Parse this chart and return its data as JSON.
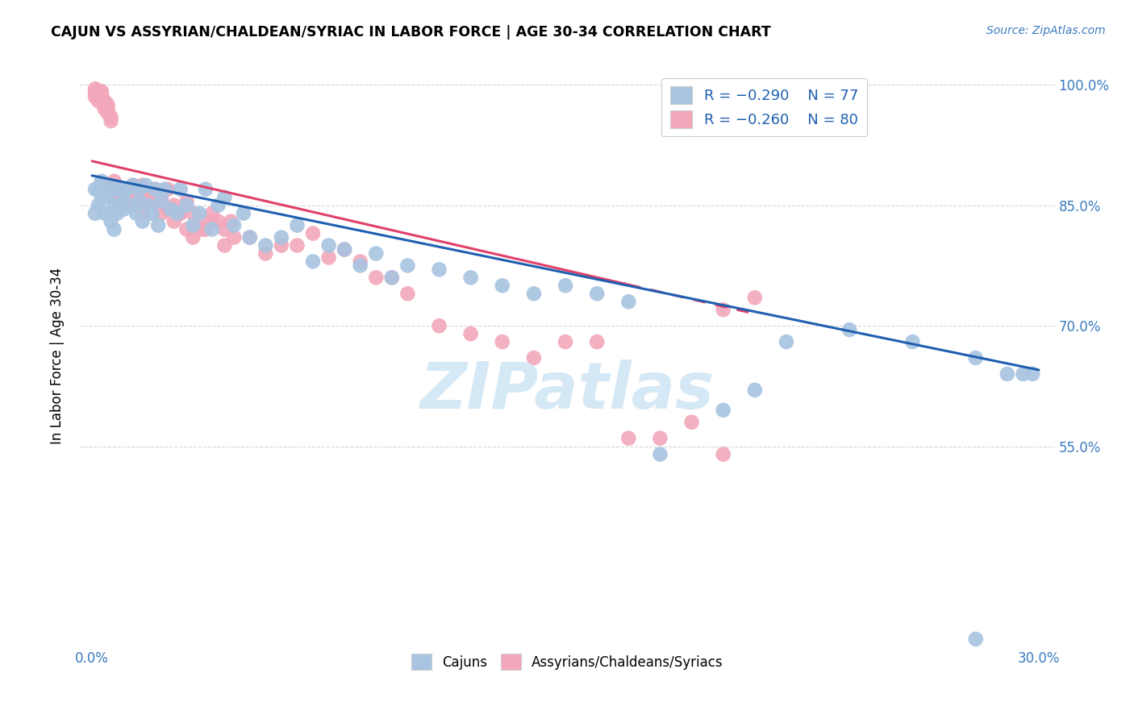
{
  "title": "CAJUN VS ASSYRIAN/CHALDEAN/SYRIAC IN LABOR FORCE | AGE 30-34 CORRELATION CHART",
  "source": "Source: ZipAtlas.com",
  "ylabel": "In Labor Force | Age 30-34",
  "xlim": [
    -0.004,
    0.305
  ],
  "ylim": [
    0.3,
    1.025
  ],
  "x_ticks": [
    0.0,
    0.05,
    0.1,
    0.15,
    0.2,
    0.25,
    0.3
  ],
  "x_tick_labels": [
    "0.0%",
    "",
    "",
    "",
    "",
    "",
    "30.0%"
  ],
  "y_ticks_right": [
    0.55,
    0.7,
    0.85,
    1.0
  ],
  "y_tick_labels_right": [
    "55.0%",
    "70.0%",
    "85.0%",
    "100.0%"
  ],
  "blue_color": "#a8c4e0",
  "pink_color": "#f2a8ba",
  "blue_line_color": "#2060b0",
  "pink_line_color": "#e0406a",
  "grid_color": "#cccccc",
  "watermark_color": "#d5e8f5",
  "blue_scatter_x": [
    0.001,
    0.001,
    0.002,
    0.002,
    0.003,
    0.003,
    0.003,
    0.004,
    0.004,
    0.005,
    0.005,
    0.006,
    0.006,
    0.006,
    0.007,
    0.007,
    0.008,
    0.008,
    0.009,
    0.009,
    0.01,
    0.01,
    0.011,
    0.012,
    0.013,
    0.014,
    0.015,
    0.015,
    0.016,
    0.017,
    0.018,
    0.019,
    0.02,
    0.021,
    0.022,
    0.023,
    0.025,
    0.027,
    0.028,
    0.03,
    0.032,
    0.034,
    0.036,
    0.038,
    0.04,
    0.042,
    0.045,
    0.048,
    0.05,
    0.055,
    0.06,
    0.065,
    0.07,
    0.075,
    0.08,
    0.085,
    0.09,
    0.095,
    0.1,
    0.11,
    0.12,
    0.13,
    0.14,
    0.15,
    0.16,
    0.17,
    0.18,
    0.2,
    0.21,
    0.22,
    0.24,
    0.26,
    0.28,
    0.29,
    0.295,
    0.298,
    0.28
  ],
  "blue_scatter_y": [
    0.87,
    0.84,
    0.85,
    0.87,
    0.88,
    0.86,
    0.875,
    0.84,
    0.87,
    0.86,
    0.875,
    0.84,
    0.87,
    0.83,
    0.85,
    0.82,
    0.87,
    0.84,
    0.85,
    0.87,
    0.865,
    0.845,
    0.87,
    0.85,
    0.875,
    0.84,
    0.855,
    0.87,
    0.83,
    0.875,
    0.85,
    0.84,
    0.87,
    0.825,
    0.855,
    0.87,
    0.845,
    0.84,
    0.87,
    0.85,
    0.825,
    0.84,
    0.87,
    0.82,
    0.85,
    0.86,
    0.825,
    0.84,
    0.81,
    0.8,
    0.81,
    0.825,
    0.78,
    0.8,
    0.795,
    0.775,
    0.79,
    0.76,
    0.775,
    0.77,
    0.76,
    0.75,
    0.74,
    0.75,
    0.74,
    0.73,
    0.54,
    0.595,
    0.62,
    0.68,
    0.695,
    0.68,
    0.66,
    0.64,
    0.64,
    0.64,
    0.31
  ],
  "pink_scatter_x": [
    0.001,
    0.001,
    0.001,
    0.002,
    0.002,
    0.002,
    0.003,
    0.003,
    0.003,
    0.003,
    0.004,
    0.004,
    0.004,
    0.005,
    0.005,
    0.005,
    0.006,
    0.006,
    0.007,
    0.007,
    0.008,
    0.009,
    0.01,
    0.011,
    0.012,
    0.013,
    0.014,
    0.015,
    0.016,
    0.017,
    0.018,
    0.02,
    0.022,
    0.024,
    0.026,
    0.028,
    0.03,
    0.032,
    0.035,
    0.038,
    0.042,
    0.045,
    0.05,
    0.055,
    0.06,
    0.065,
    0.07,
    0.075,
    0.08,
    0.085,
    0.09,
    0.095,
    0.1,
    0.11,
    0.12,
    0.13,
    0.14,
    0.15,
    0.16,
    0.17,
    0.18,
    0.19,
    0.2,
    0.21,
    0.016,
    0.018,
    0.02,
    0.022,
    0.024,
    0.026,
    0.028,
    0.03,
    0.032,
    0.034,
    0.036,
    0.038,
    0.04,
    0.042,
    0.044,
    0.2
  ],
  "pink_scatter_y": [
    0.99,
    0.985,
    0.995,
    0.988,
    0.98,
    0.992,
    0.99,
    0.985,
    0.978,
    0.992,
    0.975,
    0.98,
    0.97,
    0.975,
    0.965,
    0.97,
    0.96,
    0.955,
    0.88,
    0.87,
    0.86,
    0.865,
    0.87,
    0.855,
    0.86,
    0.875,
    0.85,
    0.86,
    0.875,
    0.855,
    0.865,
    0.855,
    0.84,
    0.845,
    0.83,
    0.84,
    0.855,
    0.84,
    0.82,
    0.83,
    0.8,
    0.81,
    0.81,
    0.79,
    0.8,
    0.8,
    0.815,
    0.785,
    0.795,
    0.78,
    0.76,
    0.76,
    0.74,
    0.7,
    0.69,
    0.68,
    0.66,
    0.68,
    0.68,
    0.56,
    0.56,
    0.58,
    0.72,
    0.735,
    0.84,
    0.86,
    0.87,
    0.86,
    0.87,
    0.85,
    0.84,
    0.82,
    0.81,
    0.83,
    0.82,
    0.84,
    0.83,
    0.82,
    0.83,
    0.54
  ]
}
